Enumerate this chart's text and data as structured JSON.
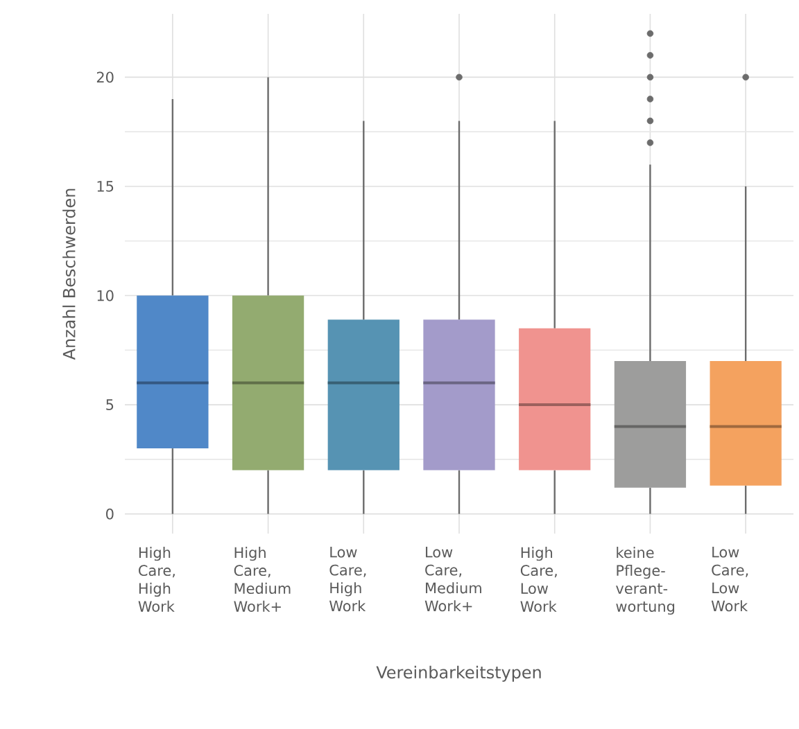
{
  "chart_data": {
    "type": "box",
    "xlabel": "Vereinbarkeitstypen",
    "ylabel": "Anzahl Beschwerden",
    "categories": [
      "High Care, High Work",
      "High Care, Medium Work+",
      "Low Care, High Work",
      "Low Care, Medium Work+",
      "High Care, Low Work",
      "keine Pflege-verant-wortung",
      "Low Care, Low Work"
    ],
    "colors": [
      "#5088c8",
      "#93ab70",
      "#5693b3",
      "#a39bca",
      "#f0938f",
      "#9d9d9c",
      "#f4a25f"
    ],
    "boxes": [
      {
        "low": 0,
        "q1": 3,
        "median": 6,
        "q3": 10,
        "high": 19
      },
      {
        "low": 0,
        "q1": 2,
        "median": 6,
        "q3": 10,
        "high": 20
      },
      {
        "low": 0,
        "q1": 2,
        "median": 6,
        "q3": 8.9,
        "high": 18
      },
      {
        "low": 0,
        "q1": 2,
        "median": 6,
        "q3": 8.9,
        "high": 18,
        "outliers": [
          20
        ]
      },
      {
        "low": 0,
        "q1": 2,
        "median": 5,
        "q3": 8.5,
        "high": 18
      },
      {
        "low": 0,
        "q1": 1.2,
        "median": 4,
        "q3": 7,
        "high": 16,
        "outliers": [
          17,
          18,
          19,
          20,
          21,
          22
        ]
      },
      {
        "low": 0,
        "q1": 1.3,
        "median": 4,
        "q3": 7,
        "high": 15,
        "outliers": [
          20
        ]
      }
    ],
    "ylim": [
      -0.9,
      22.9
    ],
    "yticks": [
      0,
      5,
      10,
      15,
      20
    ],
    "grid": true
  }
}
